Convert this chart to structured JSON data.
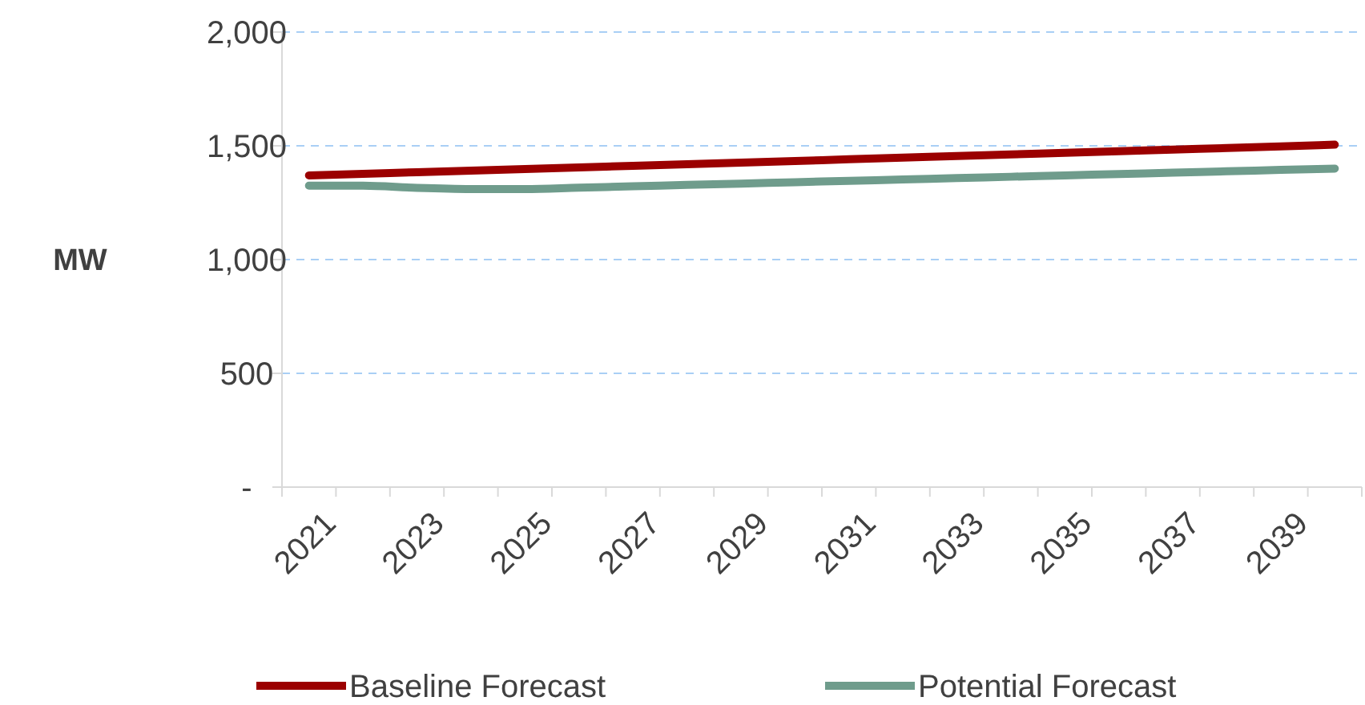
{
  "chart_data": {
    "type": "line",
    "ylabel": "MW",
    "categories": [
      "2021",
      null,
      "2023",
      null,
      "2025",
      null,
      "2027",
      null,
      "2029",
      null,
      "2031",
      null,
      "2033",
      null,
      "2035",
      null,
      "2037",
      null,
      "2039",
      null
    ],
    "series": [
      {
        "name": "Baseline Forecast",
        "color": "#9b0000",
        "values": [
          1370,
          1377,
          1384,
          1391,
          1398,
          1405,
          1412,
          1419,
          1426,
          1433,
          1441,
          1448,
          1455,
          1462,
          1469,
          1476,
          1483,
          1490,
          1497,
          1505
        ]
      },
      {
        "name": "Potential Forecast",
        "color": "#6f9c8c",
        "values": [
          1325,
          1325,
          1315,
          1310,
          1310,
          1316,
          1322,
          1328,
          1334,
          1340,
          1346,
          1352,
          1358,
          1364,
          1370,
          1376,
          1382,
          1388,
          1394,
          1400
        ]
      }
    ],
    "ylim": [
      0,
      2000
    ],
    "yticks": [
      {
        "value": 0,
        "label": "-"
      },
      {
        "value": 500,
        "label": "500"
      },
      {
        "value": 1000,
        "label": "1,000"
      },
      {
        "value": 1500,
        "label": "1,500"
      },
      {
        "value": 2000,
        "label": "2,000"
      }
    ],
    "grid": "y",
    "legend": "bottom",
    "marker": "none",
    "line_style": "solid"
  }
}
